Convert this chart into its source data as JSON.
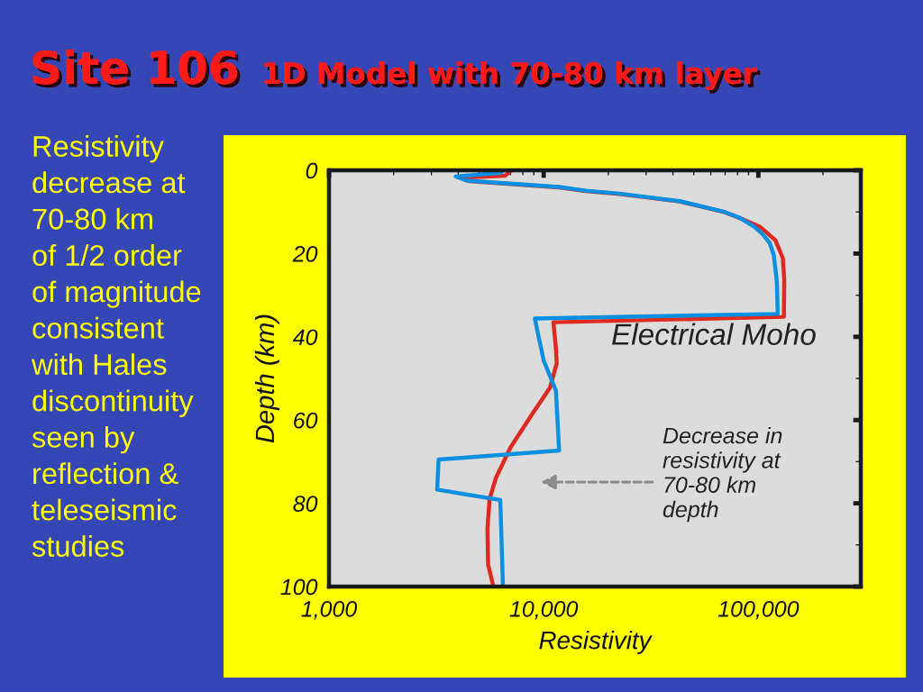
{
  "chart_data": {
    "type": "line",
    "title": "Site 106",
    "subtitle": "1D Model with 70-80 km layer",
    "xlabel": "Resistivity",
    "ylabel": "Depth (km)",
    "log": "x",
    "xlim": [
      1000,
      300000
    ],
    "ylim": [
      100,
      0
    ],
    "xticks": [
      {
        "value": 1000,
        "label": "1,000"
      },
      {
        "value": 10000,
        "label": "10,000"
      },
      {
        "value": 100000,
        "label": "100,000"
      },
      {
        "value": 2000,
        "label": null
      },
      {
        "value": 3000,
        "label": null
      },
      {
        "value": 4000,
        "label": null
      },
      {
        "value": 5000,
        "label": null
      },
      {
        "value": 6000,
        "label": null
      },
      {
        "value": 7000,
        "label": null
      },
      {
        "value": 8000,
        "label": null
      },
      {
        "value": 9000,
        "label": null
      },
      {
        "value": 20000,
        "label": null
      },
      {
        "value": 30000,
        "label": null
      },
      {
        "value": 40000,
        "label": null
      },
      {
        "value": 50000,
        "label": null
      },
      {
        "value": 60000,
        "label": null
      },
      {
        "value": 70000,
        "label": null
      },
      {
        "value": 80000,
        "label": null
      },
      {
        "value": 90000,
        "label": null
      },
      {
        "value": 200000,
        "label": null
      }
    ],
    "yticks": [
      0,
      20,
      40,
      60,
      80,
      100,
      {
        "value": 10,
        "label": null
      },
      {
        "value": 30,
        "label": null
      },
      {
        "value": 50,
        "label": null
      },
      {
        "value": 70,
        "label": null
      },
      {
        "value": 90,
        "label": null
      }
    ],
    "grid": false,
    "series": [
      {
        "color": "#e12a1f",
        "x": [
          7100,
          6600,
          4100,
          4500,
          11800,
          15700,
          22500,
          43000,
          70000,
          82000,
          102000,
          120000,
          130000,
          132000,
          131500,
          11100,
          11400,
          11500,
          10700,
          8800,
          7000,
          6000,
          5600,
          5470,
          5510,
          5830
        ],
        "values": [
          0,
          1.3,
          1.8,
          2.6,
          4.1,
          5.0,
          5.7,
          7.5,
          10.1,
          11.5,
          13.6,
          16.8,
          21.1,
          26.2,
          35.2,
          36.5,
          42.8,
          46.4,
          52.2,
          58.7,
          66.6,
          73.8,
          78.9,
          86.1,
          94.7,
          100
        ]
      },
      {
        "color": "#0a8fe2",
        "x": [
          6500,
          6300,
          3900,
          4400,
          11800,
          15700,
          22500,
          43000,
          69500,
          81700,
          96000,
          105000,
          113000,
          118000,
          122000,
          123000,
          9100,
          9400,
          10000,
          11400,
          11800,
          3240,
          3190,
          6280,
          6460
        ],
        "values": [
          0,
          0.6,
          1.5,
          2.5,
          4.0,
          4.9,
          5.6,
          7.4,
          10.0,
          11.4,
          13.6,
          15.4,
          17.5,
          20.4,
          26.9,
          34.5,
          35.6,
          39.2,
          45.7,
          52.9,
          67.3,
          69.5,
          76.7,
          79.2,
          100
        ]
      }
    ],
    "annotations": [
      "Resistivity\ndecrease at\n70-80 km\nof 1/2 order\nof magnitude\nconsistent\nwith Hales\ndiscontinuity\nseen by\nreflection &\nteleseismic\nstudies",
      "Electrical Moho",
      "Decrease in\nresistivity at\n70-80 km\ndepth"
    ]
  }
}
